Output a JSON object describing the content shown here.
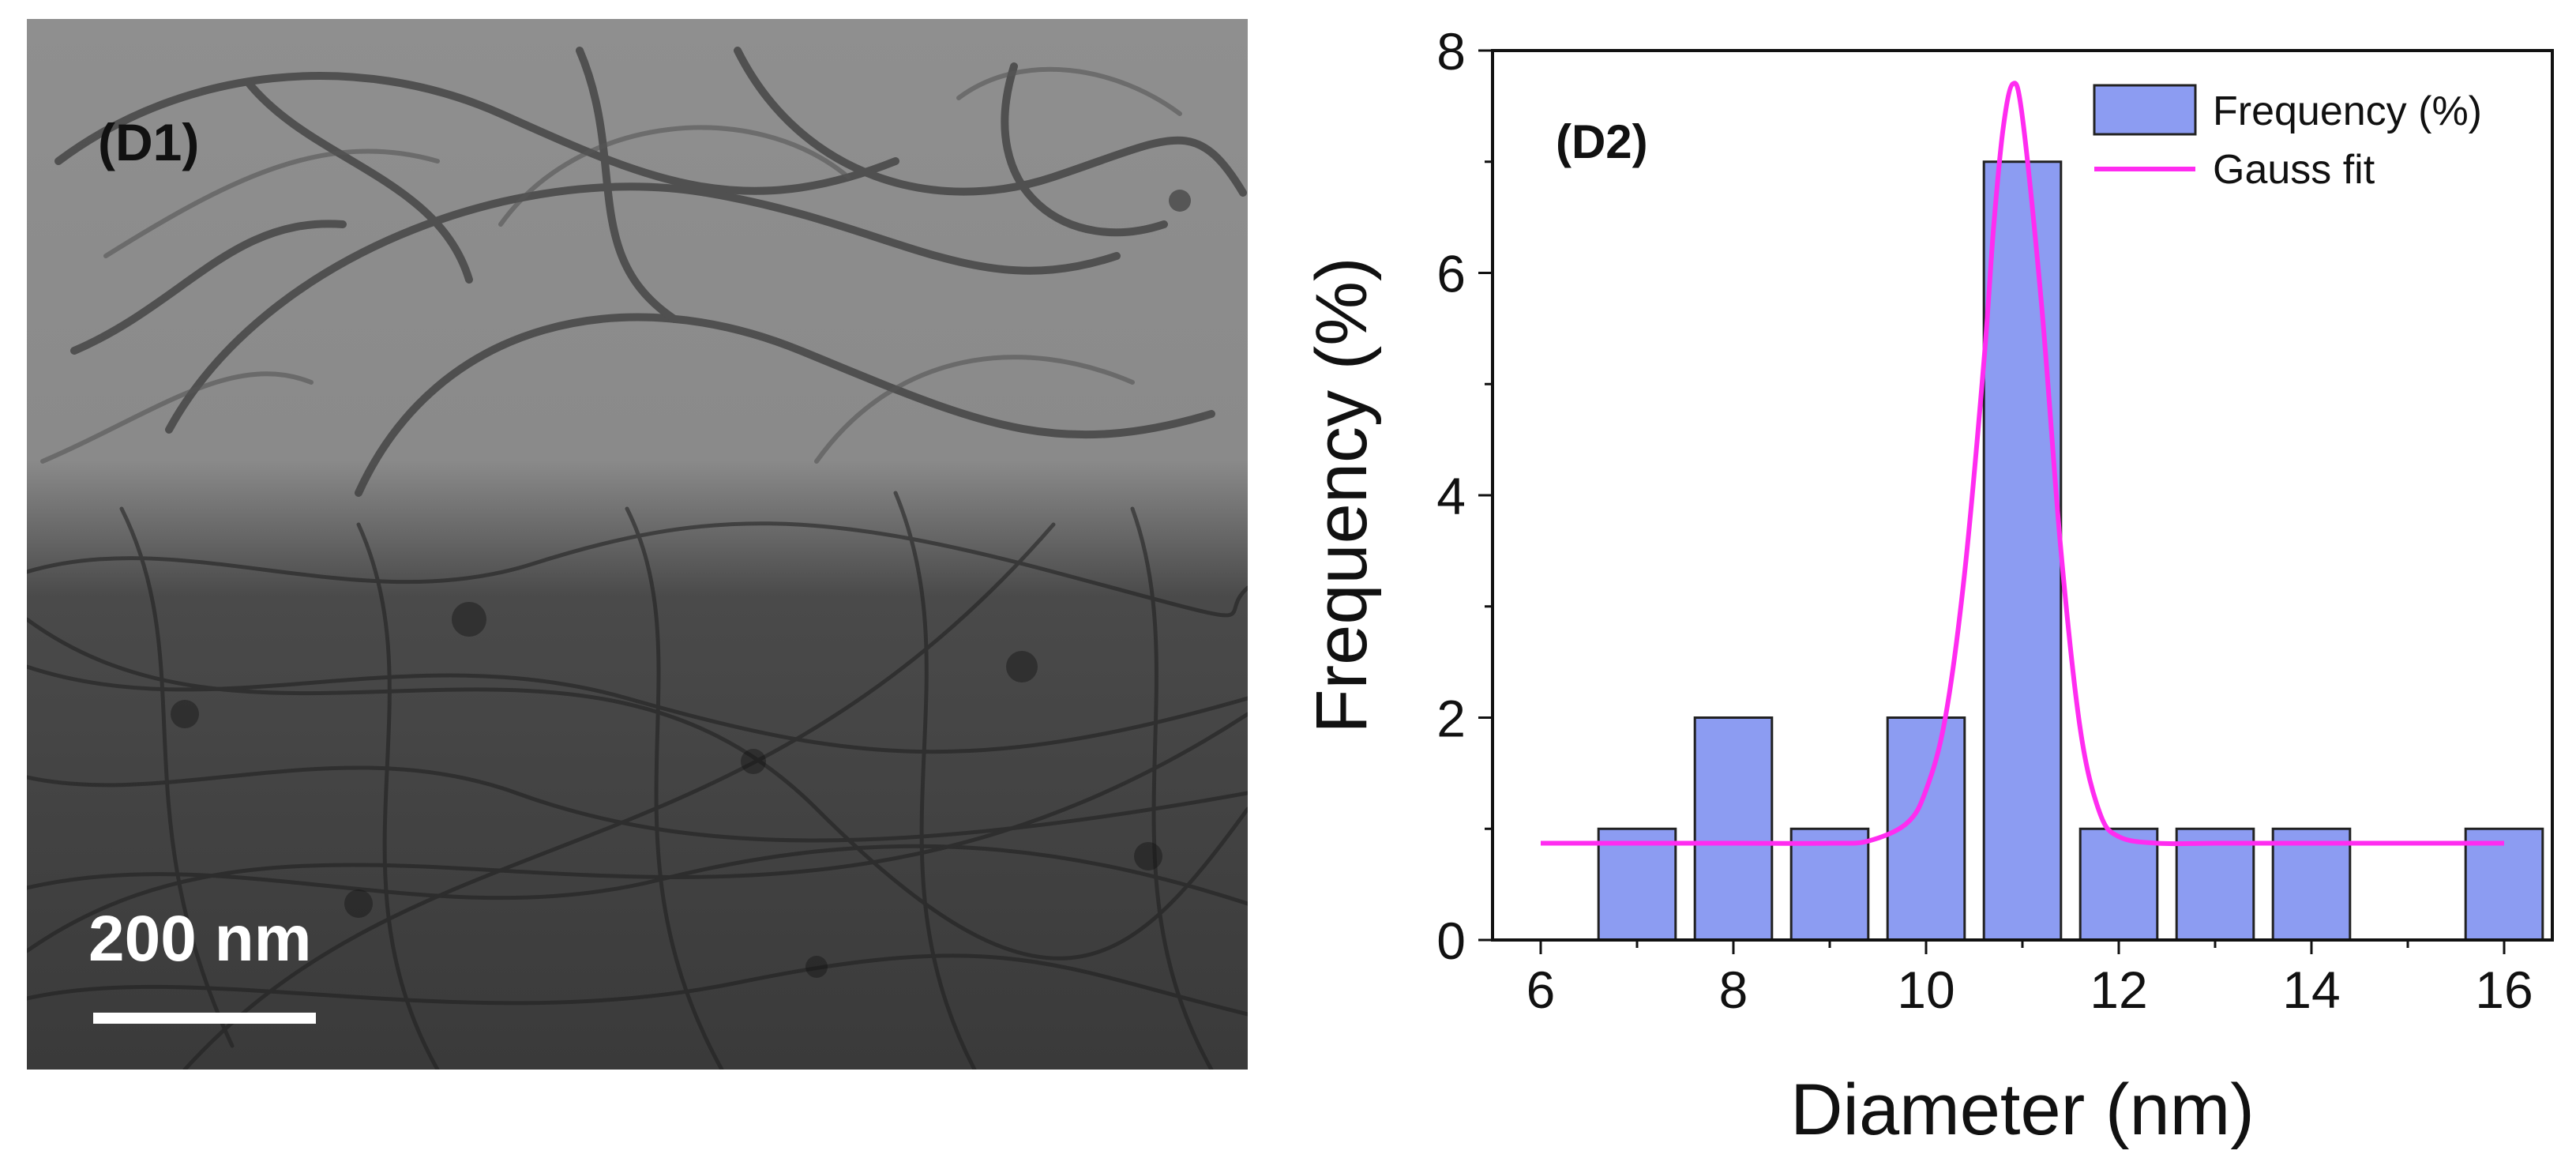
{
  "panels": {
    "tem_label": "(D1)",
    "scale_bar_label": "200 nm",
    "chart_label": "(D2)"
  },
  "colors": {
    "bar_fill": "#8c9cf2",
    "bar_stroke": "#222222",
    "fit_line": "#ff2cf0",
    "axis": "#111111"
  },
  "chart_data": {
    "type": "bar",
    "title": "",
    "xlabel": "Diameter (nm)",
    "ylabel": "Frequency (%)",
    "xlim": [
      5.5,
      16.5
    ],
    "ylim": [
      0,
      8
    ],
    "xticks": [
      6,
      8,
      10,
      12,
      14,
      16
    ],
    "yticks": [
      0,
      2,
      4,
      6,
      8
    ],
    "grid": false,
    "legend_position": "top-right",
    "series": [
      {
        "name": "Frequency (%)",
        "kind": "bar",
        "x": [
          7,
          8,
          9,
          10,
          11,
          12,
          13,
          14,
          15,
          16
        ],
        "values": [
          1,
          2,
          1,
          2,
          7,
          1,
          1,
          1,
          0,
          1
        ]
      },
      {
        "name": "Gauss fit",
        "kind": "line",
        "x": [
          6,
          7,
          8,
          9,
          9.4,
          9.8,
          10.0,
          10.2,
          10.4,
          10.6,
          10.7,
          10.8,
          10.9,
          11.0,
          11.2,
          11.4,
          11.6,
          11.8,
          12.0,
          12.4,
          13,
          14,
          15,
          16
        ],
        "values": [
          0.87,
          0.87,
          0.87,
          0.87,
          0.89,
          1.05,
          1.35,
          2.0,
          3.3,
          5.2,
          6.4,
          7.3,
          7.7,
          7.4,
          5.7,
          3.5,
          1.9,
          1.15,
          0.93,
          0.87,
          0.87,
          0.87,
          0.87,
          0.87
        ]
      }
    ]
  }
}
